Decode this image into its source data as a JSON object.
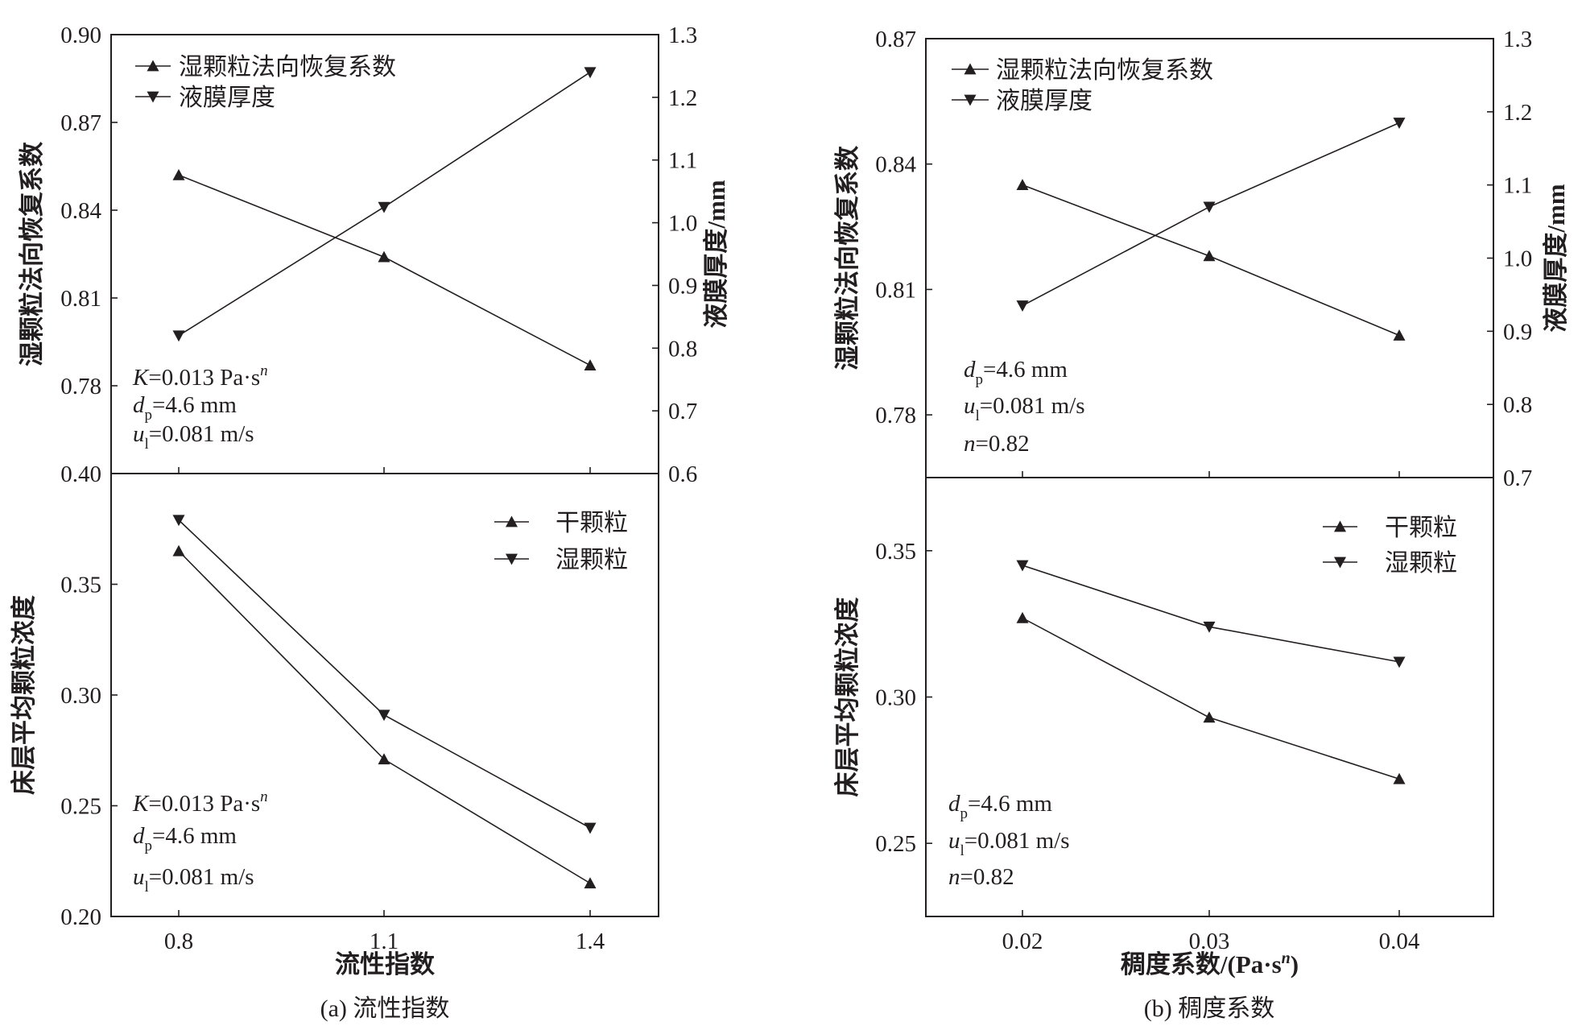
{
  "chart_data": [
    {
      "id": "a_top",
      "type": "line",
      "x": [
        "0.8",
        "1.1",
        "1.4"
      ],
      "xticks": [
        "0.8",
        "1.1",
        "1.4"
      ],
      "ylim": [
        0.75,
        0.9
      ],
      "yticks": [
        "0.78",
        "0.81",
        "0.84",
        "0.87",
        "0.90"
      ],
      "ylabel": "湿颗粒法向恢复系数",
      "y2lim": [
        0.6,
        1.3
      ],
      "y2ticks": [
        "0.6",
        "0.7",
        "0.8",
        "0.9",
        "1.0",
        "1.1",
        "1.2",
        "1.3"
      ],
      "y2label": "液膜厚度/mm",
      "series": [
        {
          "name": "湿颗粒法向恢复系数",
          "marker": "triangle-up",
          "axis": "left",
          "values": [
            0.852,
            0.824,
            0.787
          ]
        },
        {
          "name": "液膜厚度",
          "marker": "triangle-down",
          "axis": "right",
          "values": [
            0.82,
            1.025,
            1.24
          ]
        }
      ],
      "annotations": [
        {
          "italic": "K",
          "text": "=0.013 Pa·s",
          "sup": "n"
        },
        {
          "italic": "d",
          "sub": "p",
          "text": "=4.6 mm"
        },
        {
          "italic": "u",
          "sub": "l",
          "text": "=0.081 m/s"
        }
      ]
    },
    {
      "id": "a_bottom",
      "type": "line",
      "x": [
        "0.8",
        "1.1",
        "1.4"
      ],
      "xticks": [
        "0.8",
        "1.1",
        "1.4"
      ],
      "xlabel": "流性指数",
      "ylim": [
        0.2,
        0.4
      ],
      "yticks": [
        "0.20",
        "0.25",
        "0.30",
        "0.35",
        "0.40"
      ],
      "ylabel": "床层平均颗粒浓度",
      "series": [
        {
          "name": "干颗粒",
          "marker": "triangle-up",
          "values": [
            0.365,
            0.271,
            0.215
          ]
        },
        {
          "name": "湿颗粒",
          "marker": "triangle-down",
          "values": [
            0.379,
            0.291,
            0.24
          ]
        }
      ],
      "annotations": [
        {
          "italic": "K",
          "text": "=0.013 Pa·s",
          "sup": "n"
        },
        {
          "italic": "d",
          "sub": "p",
          "text": "=4.6 mm"
        },
        {
          "italic": "u",
          "sub": "l",
          "text": "=0.081 m/s"
        }
      ]
    },
    {
      "id": "b_top",
      "type": "line",
      "x": [
        "0.02",
        "0.03",
        "0.04"
      ],
      "xticks": [
        "0.02",
        "0.03",
        "0.04"
      ],
      "ylim": [
        0.765,
        0.87
      ],
      "yticks": [
        "0.78",
        "0.81",
        "0.84",
        "0.87"
      ],
      "ylabel": "湿颗粒法向恢复系数",
      "y2lim": [
        0.7,
        1.3
      ],
      "y2ticks": [
        "0.7",
        "0.8",
        "0.9",
        "1.0",
        "1.1",
        "1.2",
        "1.3"
      ],
      "y2label": "液膜厚度/mm",
      "series": [
        {
          "name": "湿颗粒法向恢复系数",
          "marker": "triangle-up",
          "axis": "left",
          "values": [
            0.835,
            0.818,
            0.799
          ]
        },
        {
          "name": "液膜厚度",
          "marker": "triangle-down",
          "axis": "right",
          "values": [
            0.935,
            1.07,
            1.185
          ]
        }
      ],
      "annotations": [
        {
          "italic": "d",
          "sub": "p",
          "text": "=4.6 mm"
        },
        {
          "italic": "u",
          "sub": "l",
          "text": "=0.081 m/s"
        },
        {
          "italic": "n",
          "text": "=0.82"
        }
      ]
    },
    {
      "id": "b_bottom",
      "type": "line",
      "x": [
        "0.02",
        "0.03",
        "0.04"
      ],
      "xticks": [
        "0.02",
        "0.03",
        "0.04"
      ],
      "xlabel": "稠度系数/(Pa·s",
      "xlabel_sup": "n",
      "xlabel_end": ")",
      "ylim": [
        0.225,
        0.375
      ],
      "yticks": [
        "0.25",
        "0.30",
        "0.35"
      ],
      "ylabel": "床层平均颗粒浓度",
      "series": [
        {
          "name": "干颗粒",
          "marker": "triangle-up",
          "values": [
            0.327,
            0.293,
            0.272
          ]
        },
        {
          "name": "湿颗粒",
          "marker": "triangle-down",
          "values": [
            0.345,
            0.324,
            0.312
          ]
        }
      ],
      "annotations": [
        {
          "italic": "d",
          "sub": "p",
          "text": "=4.6 mm"
        },
        {
          "italic": "u",
          "sub": "l",
          "text": "=0.081 m/s"
        },
        {
          "italic": "n",
          "text": "=0.82"
        }
      ]
    }
  ],
  "captions": {
    "a": "(a) 流性指数",
    "b": "(b) 稠度系数"
  }
}
